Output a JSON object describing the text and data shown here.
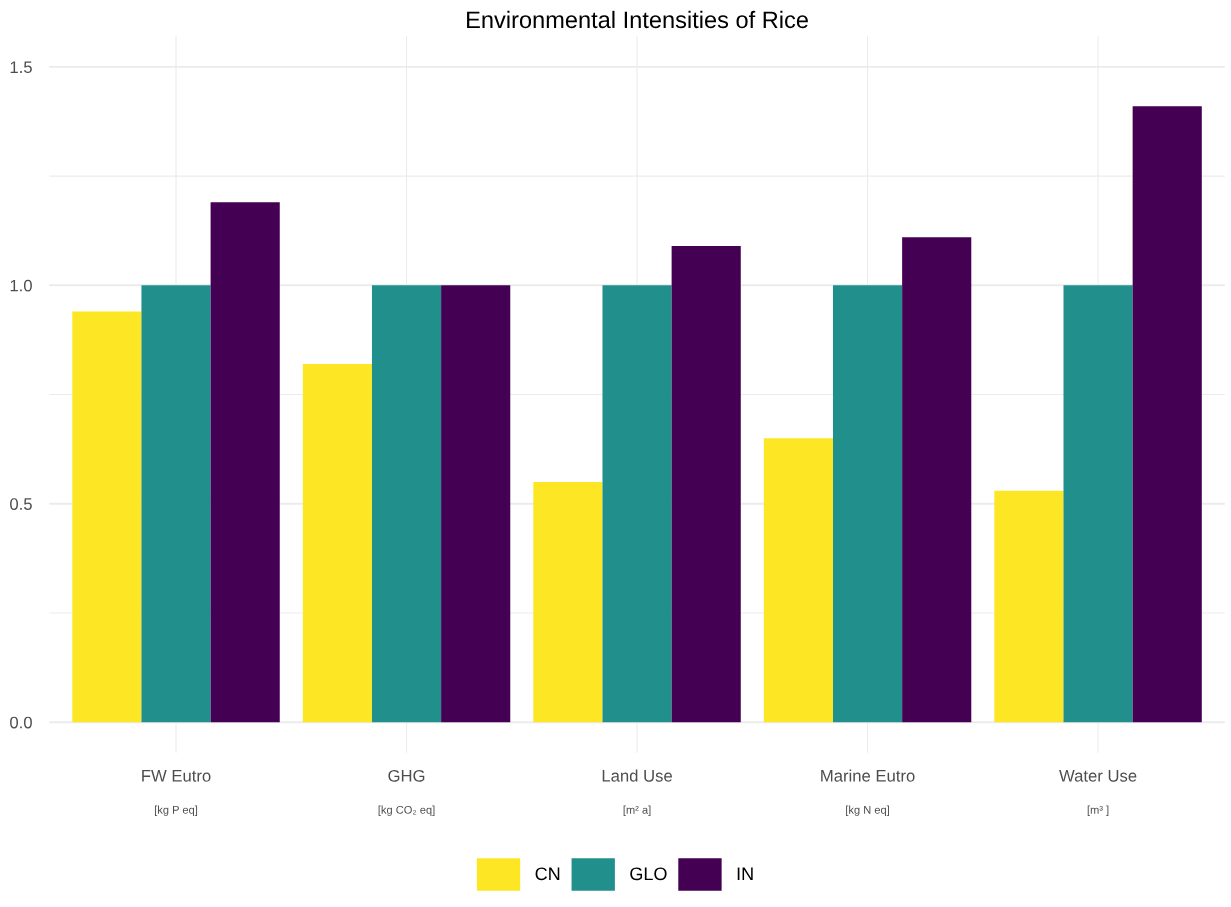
{
  "chart_data": {
    "type": "bar",
    "title": "Environmental Intensities of Rice",
    "categories": [
      "FW Eutro\n[kg P eq]",
      "GHG\n[kg CO₂ eq]",
      "Land Use\n[m² a]",
      "Marine Eutro\n[kg N eq]",
      "Water Use\n[m³ ]"
    ],
    "series": [
      {
        "name": "CN",
        "color": "#fde725",
        "values": [
          0.94,
          0.82,
          0.55,
          0.65,
          0.53
        ]
      },
      {
        "name": "GLO",
        "color": "#21908c",
        "values": [
          1.0,
          1.0,
          1.0,
          1.0,
          1.0
        ]
      },
      {
        "name": "IN",
        "color": "#440154",
        "values": [
          1.19,
          1.0,
          1.09,
          1.11,
          1.41
        ]
      }
    ],
    "ylim": [
      -0.07,
      1.57
    ],
    "yticks": [
      {
        "value": 0,
        "label": "0.0"
      },
      {
        "value": 0.25,
        "label": null
      },
      {
        "value": 0.5,
        "label": "0.5"
      },
      {
        "value": 0.75,
        "label": null
      },
      {
        "value": 1.0,
        "label": "1.0"
      },
      {
        "value": 1.25,
        "label": null
      },
      {
        "value": 1.5,
        "label": "1.5"
      }
    ],
    "grid": true,
    "legend": "bottom"
  }
}
